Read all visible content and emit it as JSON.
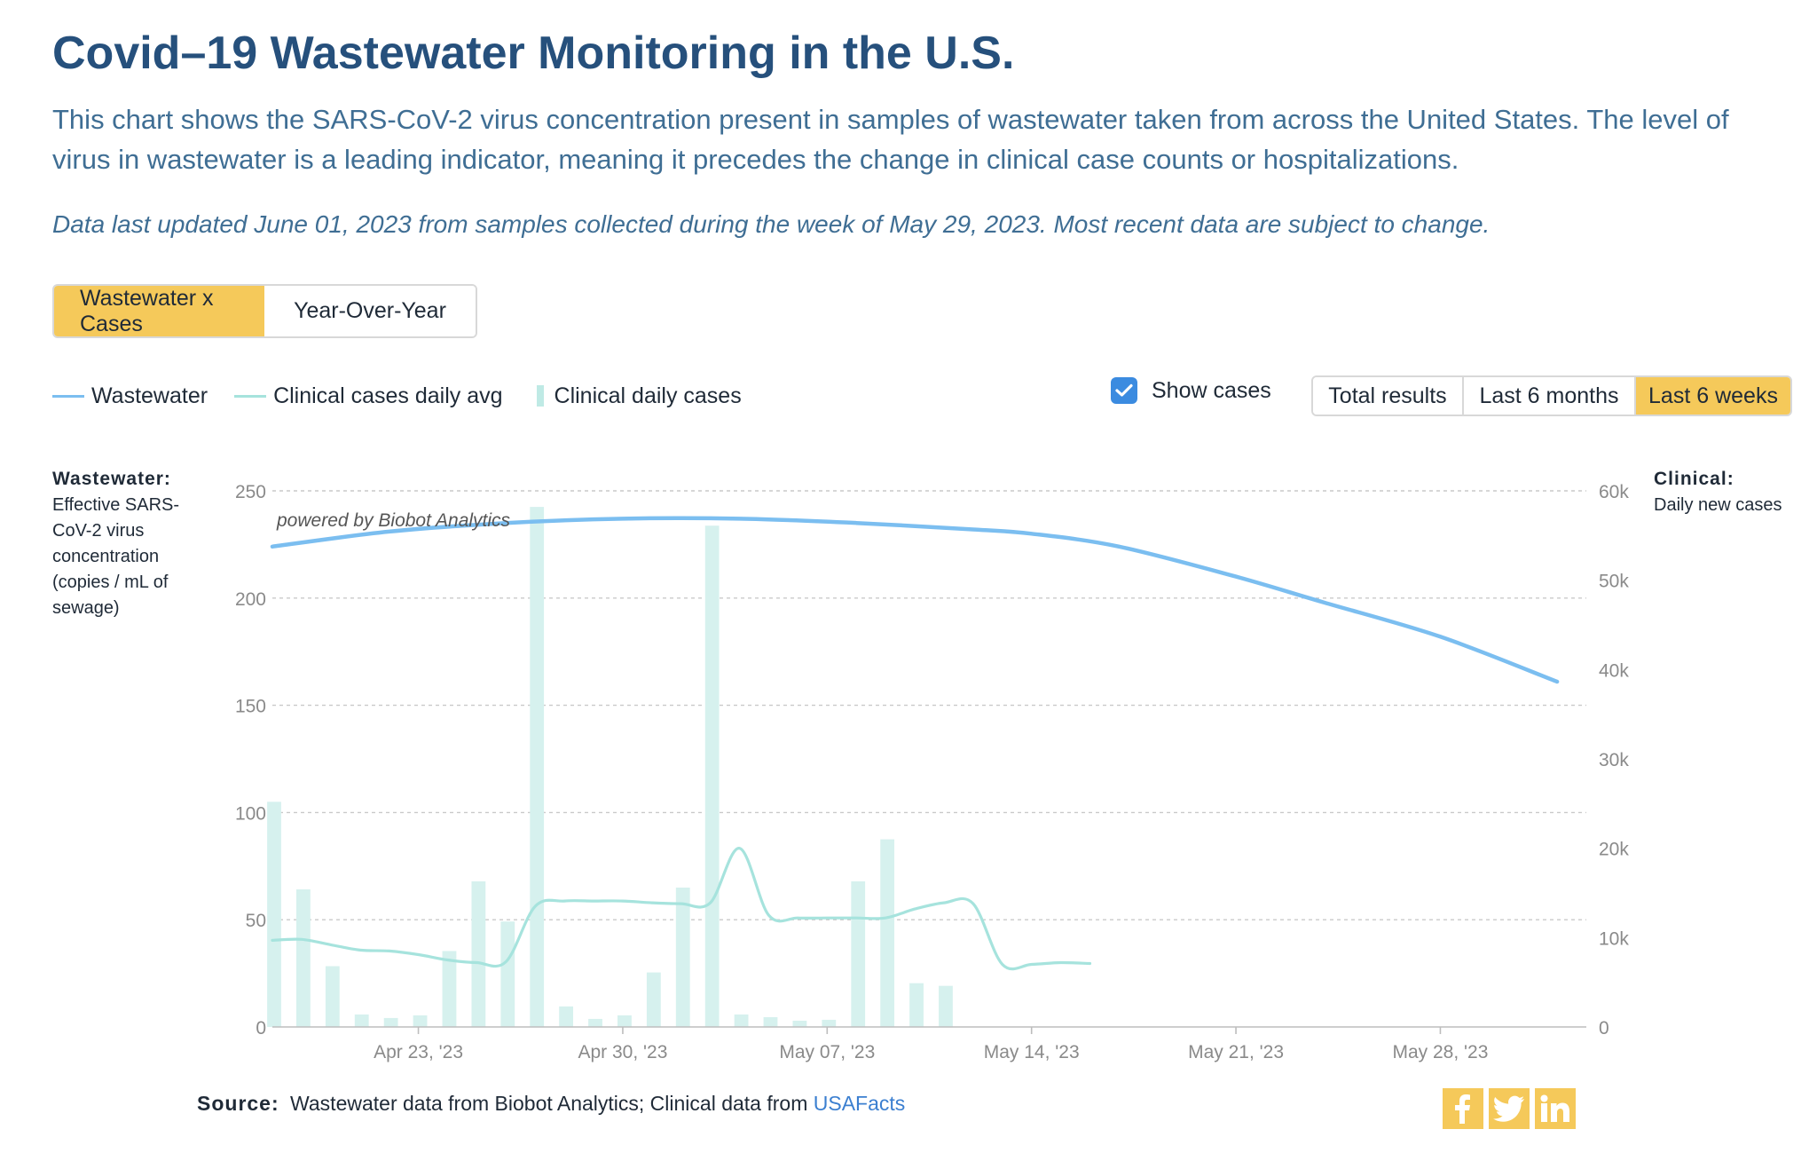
{
  "header": {
    "title": "Covid–19 Wastewater Monitoring in the U.S.",
    "subtitle": "This chart shows the SARS-CoV-2 virus concentration present in samples of wastewater taken from across the United States. The level of virus in wastewater is a leading indicator, meaning it precedes the change in clinical case counts or hospitalizations.",
    "updated": "Data last updated June 01, 2023 from samples collected during the week of May 29, 2023. Most recent data are subject to change."
  },
  "view_toggle": {
    "options": [
      "Wastewater x Cases",
      "Year-Over-Year"
    ],
    "selected": "Wastewater x Cases"
  },
  "legend": {
    "items": [
      "Wastewater",
      "Clinical cases daily avg",
      "Clinical daily cases"
    ]
  },
  "show_cases": {
    "label": "Show cases",
    "checked": true
  },
  "range_toggle": {
    "options": [
      "Total results",
      "Last 6 months",
      "Last 6 weeks"
    ],
    "selected": "Last 6 weeks"
  },
  "left_axis": {
    "title": "Wastewater:",
    "description": "Effective SARS-CoV-2 virus concentration (copies / mL of sewage)"
  },
  "right_axis": {
    "title": "Clinical:",
    "description": "Daily new cases"
  },
  "watermark": "powered by Biobot Analytics",
  "source": {
    "label": "Source:",
    "text": "Wastewater data from Biobot Analytics; Clinical data from",
    "link": "USAFacts"
  },
  "share_icons": [
    "facebook-icon",
    "twitter-icon",
    "linkedin-icon"
  ],
  "colors": {
    "wastewater": "#7bbef0",
    "cases_avg": "#a6e3dd",
    "cases_bar": "#d6f1ee",
    "accent": "#f5c95a",
    "title": "#26507c"
  },
  "chart_data": {
    "type": "line",
    "x_range": [
      "2023-04-18",
      "2023-06-02"
    ],
    "x_ticks": [
      {
        "date": "2023-04-23",
        "label": "Apr 23, '23"
      },
      {
        "date": "2023-04-30",
        "label": "Apr 30, '23"
      },
      {
        "date": "2023-05-07",
        "label": "May 07, '23"
      },
      {
        "date": "2023-05-14",
        "label": "May 14, '23"
      },
      {
        "date": "2023-05-21",
        "label": "May 21, '23"
      },
      {
        "date": "2023-05-28",
        "label": "May 28, '23"
      }
    ],
    "left_axis": {
      "range": [
        0,
        250
      ],
      "ticks": [
        "0",
        "50",
        "100",
        "150",
        "200",
        "250"
      ]
    },
    "right_axis": {
      "range": [
        0,
        60000
      ],
      "ticks": [
        "0",
        "10k",
        "20k",
        "30k",
        "40k",
        "50k",
        "60k"
      ]
    },
    "grid": true,
    "series": [
      {
        "name": "Wastewater",
        "axis": "left",
        "kind": "line",
        "points": [
          [
            "2023-04-18",
            224
          ],
          [
            "2023-04-22",
            231
          ],
          [
            "2023-04-26",
            235
          ],
          [
            "2023-04-30",
            237
          ],
          [
            "2023-05-04",
            237
          ],
          [
            "2023-05-08",
            235
          ],
          [
            "2023-05-12",
            232
          ],
          [
            "2023-05-14",
            230
          ],
          [
            "2023-05-17",
            224
          ],
          [
            "2023-05-21",
            210
          ],
          [
            "2023-05-24",
            198
          ],
          [
            "2023-05-28",
            182
          ],
          [
            "2023-06-01",
            161
          ]
        ]
      },
      {
        "name": "Clinical cases daily avg",
        "axis": "right",
        "kind": "line",
        "points": [
          [
            "2023-04-18",
            9700
          ],
          [
            "2023-04-19",
            9800
          ],
          [
            "2023-04-20",
            9200
          ],
          [
            "2023-04-21",
            8600
          ],
          [
            "2023-04-22",
            8500
          ],
          [
            "2023-04-23",
            8100
          ],
          [
            "2023-04-24",
            7500
          ],
          [
            "2023-04-25",
            7200
          ],
          [
            "2023-04-26",
            7300
          ],
          [
            "2023-04-27",
            13500
          ],
          [
            "2023-04-28",
            14100
          ],
          [
            "2023-04-29",
            14100
          ],
          [
            "2023-04-30",
            14100
          ],
          [
            "2023-05-01",
            13900
          ],
          [
            "2023-05-02",
            13800
          ],
          [
            "2023-05-03",
            13900
          ],
          [
            "2023-05-04",
            20000
          ],
          [
            "2023-05-05",
            12500
          ],
          [
            "2023-05-06",
            12200
          ],
          [
            "2023-05-07",
            12200
          ],
          [
            "2023-05-08",
            12200
          ],
          [
            "2023-05-09",
            12200
          ],
          [
            "2023-05-10",
            13200
          ],
          [
            "2023-05-11",
            13900
          ],
          [
            "2023-05-12",
            13800
          ],
          [
            "2023-05-13",
            7000
          ],
          [
            "2023-05-14",
            7000
          ],
          [
            "2023-05-15",
            7200
          ],
          [
            "2023-05-16",
            7100
          ]
        ]
      },
      {
        "name": "Clinical daily cases",
        "axis": "right",
        "kind": "bar",
        "points": [
          [
            "2023-04-18",
            25200
          ],
          [
            "2023-04-19",
            15400
          ],
          [
            "2023-04-20",
            6800
          ],
          [
            "2023-04-21",
            1400
          ],
          [
            "2023-04-22",
            1000
          ],
          [
            "2023-04-23",
            1300
          ],
          [
            "2023-04-24",
            8500
          ],
          [
            "2023-04-25",
            16300
          ],
          [
            "2023-04-26",
            11800
          ],
          [
            "2023-04-27",
            58200
          ],
          [
            "2023-04-28",
            2300
          ],
          [
            "2023-04-29",
            900
          ],
          [
            "2023-04-30",
            1300
          ],
          [
            "2023-05-01",
            6100
          ],
          [
            "2023-05-02",
            15600
          ],
          [
            "2023-05-03",
            56100
          ],
          [
            "2023-05-04",
            1400
          ],
          [
            "2023-05-05",
            1100
          ],
          [
            "2023-05-06",
            700
          ],
          [
            "2023-05-07",
            800
          ],
          [
            "2023-05-08",
            16300
          ],
          [
            "2023-05-09",
            21000
          ],
          [
            "2023-05-10",
            4900
          ],
          [
            "2023-05-11",
            4600
          ]
        ]
      }
    ]
  }
}
